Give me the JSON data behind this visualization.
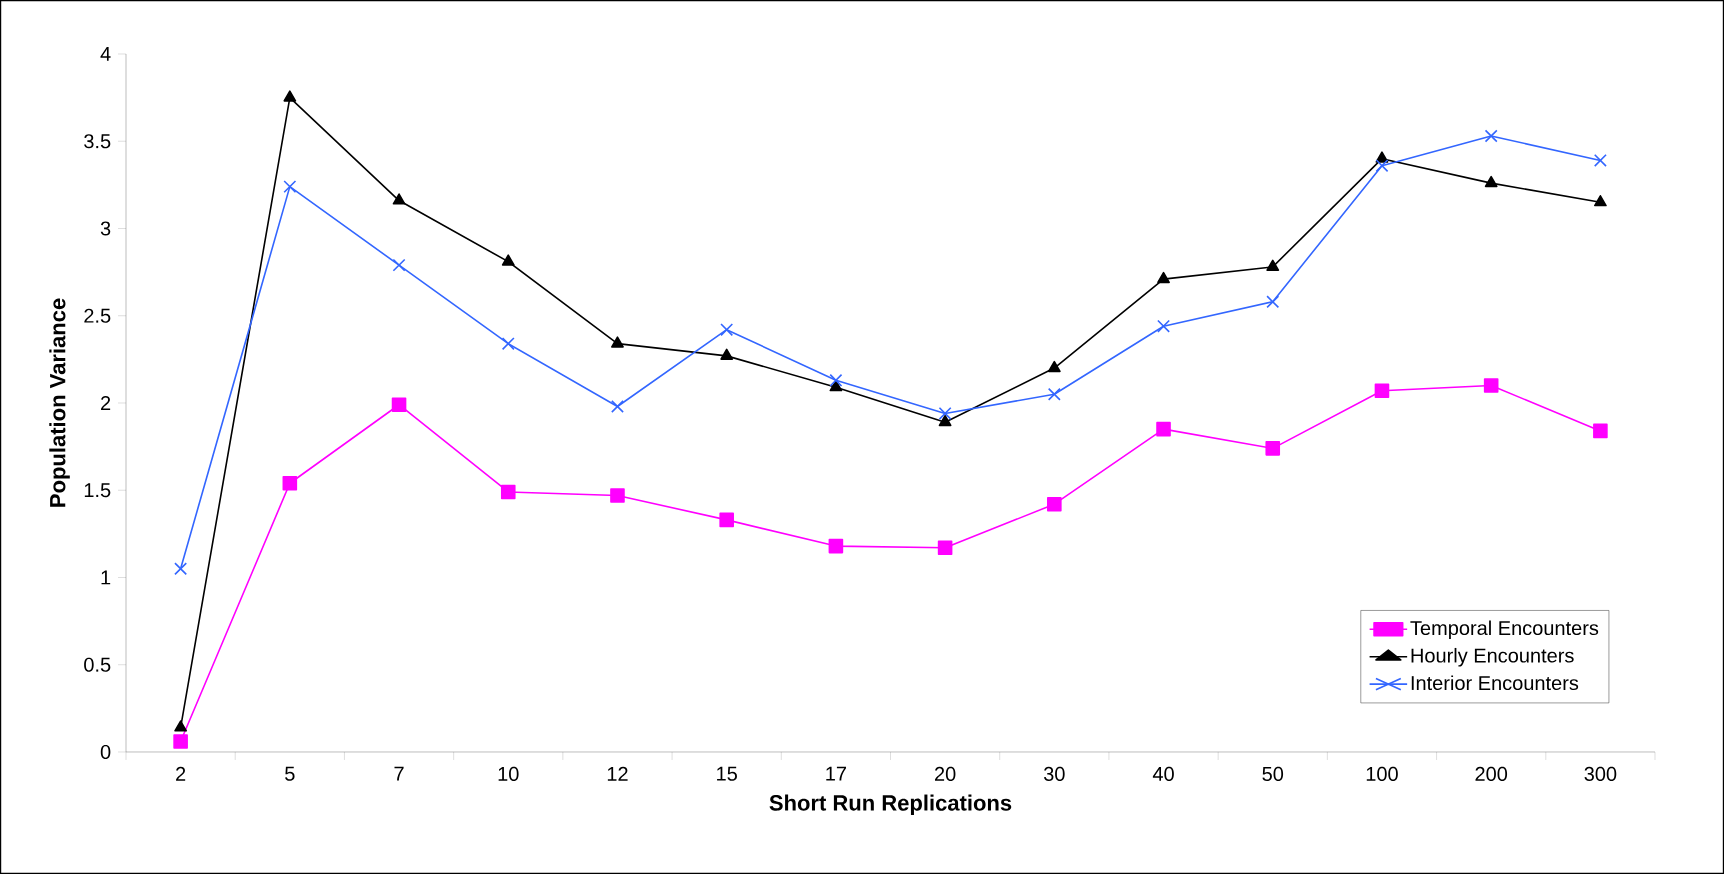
{
  "chart_data": {
    "type": "line",
    "xlabel": "Short Run Replications",
    "ylabel": "Population Variance",
    "categories": [
      "2",
      "5",
      "7",
      "10",
      "12",
      "15",
      "17",
      "20",
      "30",
      "40",
      "50",
      "100",
      "200",
      "300"
    ],
    "series": [
      {
        "name": "Temporal Encounters",
        "color": "#ff00ff",
        "marker": "square",
        "values": [
          0.06,
          1.54,
          1.99,
          1.49,
          1.47,
          1.33,
          1.18,
          1.17,
          1.42,
          1.85,
          1.74,
          2.07,
          2.1,
          1.84
        ]
      },
      {
        "name": "Hourly Encounters",
        "color": "#000000",
        "marker": "triangle",
        "values": [
          0.14,
          3.75,
          3.16,
          2.81,
          2.34,
          2.27,
          2.09,
          1.89,
          2.2,
          2.71,
          2.78,
          3.4,
          3.26,
          3.15
        ]
      },
      {
        "name": "Interior Encounters",
        "color": "#3366ff",
        "marker": "cross",
        "values": [
          1.05,
          3.24,
          2.79,
          2.34,
          1.98,
          2.42,
          2.13,
          1.94,
          2.05,
          2.44,
          2.58,
          3.36,
          3.53,
          3.39
        ]
      }
    ],
    "ylim": [
      0,
      4
    ],
    "yticks": [
      0,
      0.5,
      1,
      1.5,
      2,
      2.5,
      3,
      3.5,
      4
    ],
    "grid": false,
    "legend": "bottom right",
    "line_style": "solid"
  }
}
